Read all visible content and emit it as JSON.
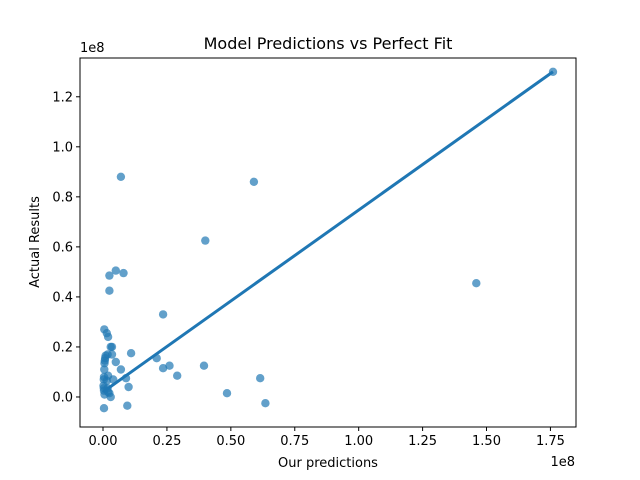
{
  "chart_data": {
    "type": "scatter",
    "title": "Model Predictions vs Perfect Fit",
    "xlabel": "Our predictions",
    "ylabel": "Actual Results",
    "x_offset_text": "1e8",
    "y_offset_text": "1e8",
    "xlim": [
      -9000000.0,
      185000000.0
    ],
    "ylim": [
      -12000000.0,
      135500000.0
    ],
    "x_ticks": [
      0,
      25000000.0,
      50000000.0,
      75000000.0,
      100000000.0,
      125000000.0,
      150000000.0,
      175000000.0
    ],
    "x_tick_labels": [
      "0.00",
      "0.25",
      "0.50",
      "0.75",
      "1.00",
      "1.25",
      "1.50",
      "1.75"
    ],
    "y_ticks": [
      0,
      20000000.0,
      40000000.0,
      60000000.0,
      80000000.0,
      100000000.0,
      120000000.0
    ],
    "y_tick_labels": [
      "0.0",
      "0.2",
      "0.4",
      "0.6",
      "0.8",
      "1.0",
      "1.2"
    ],
    "grid": false,
    "point_color": "#1f77b4",
    "point_alpha": 0.7,
    "line_color": "#1f77b4",
    "fit_line": {
      "x": [
        0,
        176000000.0
      ],
      "y": [
        2000000.0,
        130000000.0
      ]
    },
    "points": [
      [
        500000.0,
        27000000.0
      ],
      [
        1000000.0,
        16500000.0
      ],
      [
        800000.0,
        15500000.0
      ],
      [
        700000.0,
        14500000.0
      ],
      [
        600000.0,
        13500000.0
      ],
      [
        500000.0,
        11000000.0
      ],
      [
        400000.0,
        8000000.0
      ],
      [
        300000.0,
        7000000.0
      ],
      [
        200000.0,
        4500000.0
      ],
      [
        300000.0,
        3500000.0
      ],
      [
        400000.0,
        2500000.0
      ],
      [
        600000.0,
        1000000.0
      ],
      [
        400000.0,
        -4500000.0
      ],
      [
        1500000.0,
        25500000.0
      ],
      [
        2000000.0,
        24000000.0
      ],
      [
        1800000.0,
        17000000.0
      ],
      [
        2000000.0,
        8500000.0
      ],
      [
        1500000.0,
        6500000.0
      ],
      [
        1800000.0,
        3500000.0
      ],
      [
        2000000.0,
        2000000.0
      ],
      [
        2500000.0,
        1500000.0
      ],
      [
        3000000.0,
        0.0
      ],
      [
        2500000.0,
        48500000.0
      ],
      [
        2500000.0,
        42500000.0
      ],
      [
        3000000.0,
        20000000.0
      ],
      [
        3500000.0,
        20000000.0
      ],
      [
        3500000.0,
        17000000.0
      ],
      [
        4000000.0,
        7000000.0
      ],
      [
        5000000.0,
        14000000.0
      ],
      [
        5000000.0,
        50500000.0
      ],
      [
        7000000.0,
        88000000.0
      ],
      [
        7000000.0,
        11000000.0
      ],
      [
        8000000.0,
        49500000.0
      ],
      [
        9000000.0,
        7500000.0
      ],
      [
        9500000.0,
        -3500000.0
      ],
      [
        10000000.0,
        4000000.0
      ],
      [
        11000000.0,
        17500000.0
      ],
      [
        21000000.0,
        15500000.0
      ],
      [
        23500000.0,
        33000000.0
      ],
      [
        23500000.0,
        11500000.0
      ],
      [
        26000000.0,
        12500000.0
      ],
      [
        29000000.0,
        8500000.0
      ],
      [
        39500000.0,
        12500000.0
      ],
      [
        40000000.0,
        62500000.0
      ],
      [
        48500000.0,
        1500000.0
      ],
      [
        59000000.0,
        86000000.0
      ],
      [
        61500000.0,
        7500000.0
      ],
      [
        63500000.0,
        -2500000.0
      ],
      [
        146000000.0,
        45500000.0
      ],
      [
        176000000.0,
        130000000.0
      ]
    ]
  }
}
